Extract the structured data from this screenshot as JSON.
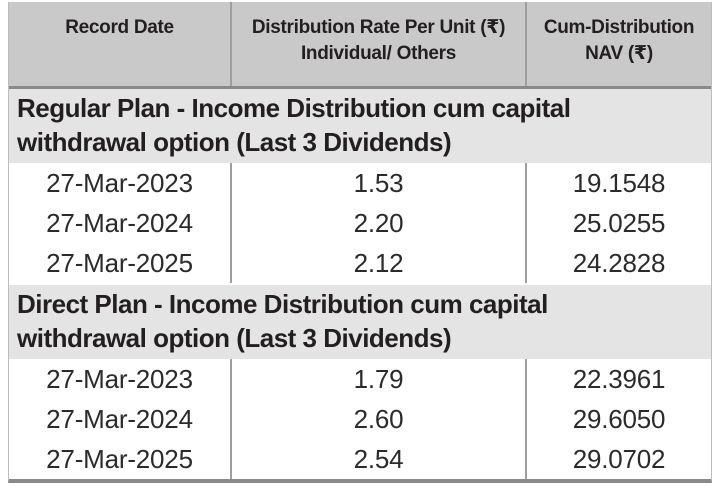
{
  "table": {
    "header": {
      "col1": "Record Date",
      "col2_line1": "Distribution Rate Per Unit (₹)",
      "col2_line2": "Individual/ Others",
      "col3_line1": "Cum-Distribution",
      "col3_line2": "NAV (₹)"
    },
    "sections": [
      {
        "title": "Regular Plan - Income Distribution cum capital withdrawal option (Last 3 Dividends)",
        "rows": [
          {
            "record_date": "27-Mar-2023",
            "distribution_rate": "1.53",
            "cum_distribution_nav": "19.1548"
          },
          {
            "record_date": "27-Mar-2024",
            "distribution_rate": "2.20",
            "cum_distribution_nav": "25.0255"
          },
          {
            "record_date": "27-Mar-2025",
            "distribution_rate": "2.12",
            "cum_distribution_nav": "24.2828"
          }
        ]
      },
      {
        "title": "Direct Plan - Income Distribution cum capital withdrawal option (Last 3 Dividends)",
        "rows": [
          {
            "record_date": "27-Mar-2023",
            "distribution_rate": "1.79",
            "cum_distribution_nav": "22.3961"
          },
          {
            "record_date": "27-Mar-2024",
            "distribution_rate": "2.60",
            "cum_distribution_nav": "29.6050"
          },
          {
            "record_date": "27-Mar-2025",
            "distribution_rate": "2.54",
            "cum_distribution_nav": "29.0702"
          }
        ]
      }
    ],
    "colors": {
      "header_bg": "#c9c9c9",
      "section_bg": "#e4e4e4",
      "divider": "#9e9e9e",
      "heavy_line": "#8a8a8a",
      "text": "#231f20"
    }
  }
}
